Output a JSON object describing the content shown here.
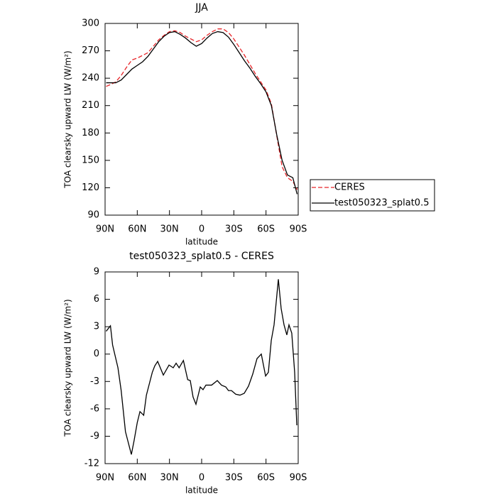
{
  "chart_data": [
    {
      "type": "line",
      "title": "JJA",
      "xlabel": "latitude",
      "ylabel": "TOA clearsky upward LW (W/m²)",
      "legend": "right",
      "x": [
        89,
        85,
        80,
        75,
        70,
        65,
        60,
        55,
        50,
        45,
        40,
        35,
        30,
        25,
        20,
        15,
        10,
        5,
        0,
        -5,
        -10,
        -15,
        -20,
        -25,
        -30,
        -35,
        -40,
        -45,
        -50,
        -55,
        -60,
        -65,
        -70,
        -75,
        -80,
        -85,
        -89
      ],
      "series": [
        {
          "name": "CERES",
          "color": "#e8262a",
          "dashed": true,
          "values": [
            231,
            233,
            236,
            243,
            252,
            260,
            262,
            265,
            268,
            275,
            282,
            287,
            291,
            292,
            290,
            286,
            283,
            280,
            282,
            287,
            291,
            294,
            294,
            290,
            283,
            274,
            265,
            255,
            245,
            236,
            227,
            212,
            177,
            143,
            131,
            127,
            118
          ]
        },
        {
          "name": "test050323_splat0.5",
          "color": "#000000",
          "dashed": false,
          "values": [
            235,
            235,
            235,
            238,
            244,
            250,
            254,
            258,
            264,
            272,
            280,
            286,
            290,
            291,
            288,
            284,
            279,
            275,
            278,
            284,
            289,
            291,
            290,
            285,
            277,
            268,
            259,
            251,
            242,
            234,
            225,
            210,
            178,
            150,
            134,
            131,
            113
          ]
        }
      ],
      "xlim": [
        90,
        -90
      ],
      "xticks": [
        {
          "value": 90,
          "label": "90N"
        },
        {
          "value": 60,
          "label": "60N"
        },
        {
          "value": 30,
          "label": "30N"
        },
        0,
        {
          "value": -30,
          "label": "30S"
        },
        {
          "value": -60,
          "label": "60S"
        },
        {
          "value": -90,
          "label": "90S"
        }
      ],
      "ylim": [
        90,
        300
      ],
      "yticks": [
        90,
        120,
        150,
        180,
        210,
        240,
        270,
        300
      ]
    },
    {
      "type": "line",
      "title": "test050323_splat0.5 - CERES",
      "xlabel": "latitude",
      "ylabel": "TOA clearsky upward LW (W/m²)",
      "x": [
        89,
        85,
        83,
        78,
        75,
        71,
        65.5,
        63,
        60,
        57.5,
        54,
        51.5,
        46,
        43.7,
        41,
        35.7,
        30.4,
        26.5,
        23.8,
        21,
        17,
        13,
        10.6,
        8,
        5.3,
        1.3,
        -1.3,
        -4,
        -9.3,
        -14.6,
        -18.5,
        -22.5,
        -25,
        -27.8,
        -31.8,
        -35.7,
        -39.7,
        -43.7,
        -47.6,
        -51.6,
        -55.6,
        -59.6,
        -62.2,
        -64.9,
        -67.5,
        -71.5,
        -74.1,
        -76.8,
        -79.4,
        -81.4,
        -84,
        -86.7,
        -88.7
      ],
      "values": [
        2.5,
        3.1,
        1,
        -1.5,
        -4,
        -8.5,
        -11,
        -9.5,
        -7.5,
        -6.3,
        -6.7,
        -4.5,
        -2,
        -1.3,
        -0.8,
        -2.3,
        -1.2,
        -1.5,
        -1,
        -1.5,
        -0.7,
        -2.8,
        -2.9,
        -4.7,
        -5.5,
        -3.6,
        -3.9,
        -3.4,
        -3.4,
        -2.9,
        -3.4,
        -3.6,
        -4,
        -4,
        -4.4,
        -4.5,
        -4.3,
        -3.5,
        -2.2,
        -0.5,
        0,
        -2.4,
        -2,
        1.5,
        3.2,
        8.2,
        5,
        3.2,
        2.1,
        3.2,
        2.3,
        -2,
        -7.8
      ],
      "color": "#000000",
      "xlim": [
        90,
        -90
      ],
      "xticks": [
        {
          "value": 90,
          "label": "90N"
        },
        {
          "value": 60,
          "label": "60N"
        },
        {
          "value": 30,
          "label": "30N"
        },
        0,
        {
          "value": -30,
          "label": "30S"
        },
        {
          "value": -60,
          "label": "60S"
        },
        {
          "value": -90,
          "label": "90S"
        }
      ],
      "ylim": [
        -12,
        9
      ],
      "yticks": [
        -12,
        -9,
        -6,
        -3,
        0,
        3,
        6,
        9
      ]
    }
  ]
}
